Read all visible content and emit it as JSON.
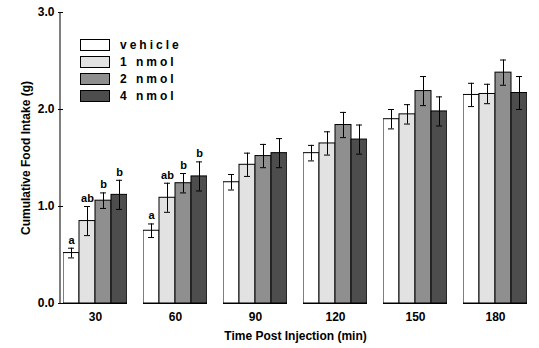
{
  "chart_data": {
    "type": "bar",
    "xlabel": "Time Post Injection (min)",
    "ylabel": "Cumulative Food Intake (g)",
    "categories": [
      "30",
      "60",
      "90",
      "120",
      "150",
      "180"
    ],
    "series": [
      {
        "name": "vehicle",
        "color": "#ffffff",
        "values": [
          0.52,
          0.75,
          1.25,
          1.55,
          1.9,
          2.15
        ],
        "errors": [
          0.05,
          0.07,
          0.08,
          0.08,
          0.1,
          0.12
        ],
        "letters": [
          "a",
          "a",
          null,
          null,
          null,
          null
        ]
      },
      {
        "name": "1 nmol",
        "color": "#e2e2e2",
        "values": [
          0.85,
          1.09,
          1.43,
          1.65,
          1.95,
          2.16
        ],
        "errors": [
          0.15,
          0.15,
          0.12,
          0.12,
          0.1,
          0.1
        ],
        "letters": [
          "ab",
          "ab",
          null,
          null,
          null,
          null
        ]
      },
      {
        "name": "2 nmol",
        "color": "#8f8f8f",
        "values": [
          1.06,
          1.24,
          1.52,
          1.84,
          2.19,
          2.38
        ],
        "errors": [
          0.08,
          0.1,
          0.12,
          0.13,
          0.15,
          0.13
        ],
        "letters": [
          "b",
          "b",
          null,
          null,
          null,
          null
        ]
      },
      {
        "name": "4 nmol",
        "color": "#4d4d4d",
        "values": [
          1.12,
          1.31,
          1.55,
          1.69,
          1.98,
          2.17
        ],
        "errors": [
          0.15,
          0.15,
          0.15,
          0.15,
          0.15,
          0.17
        ],
        "letters": [
          "b",
          "b",
          null,
          null,
          null,
          null
        ]
      }
    ],
    "ylim": [
      0,
      3
    ],
    "yticks": [
      0,
      1,
      2,
      3
    ],
    "legend": "top-left",
    "grid": false
  }
}
